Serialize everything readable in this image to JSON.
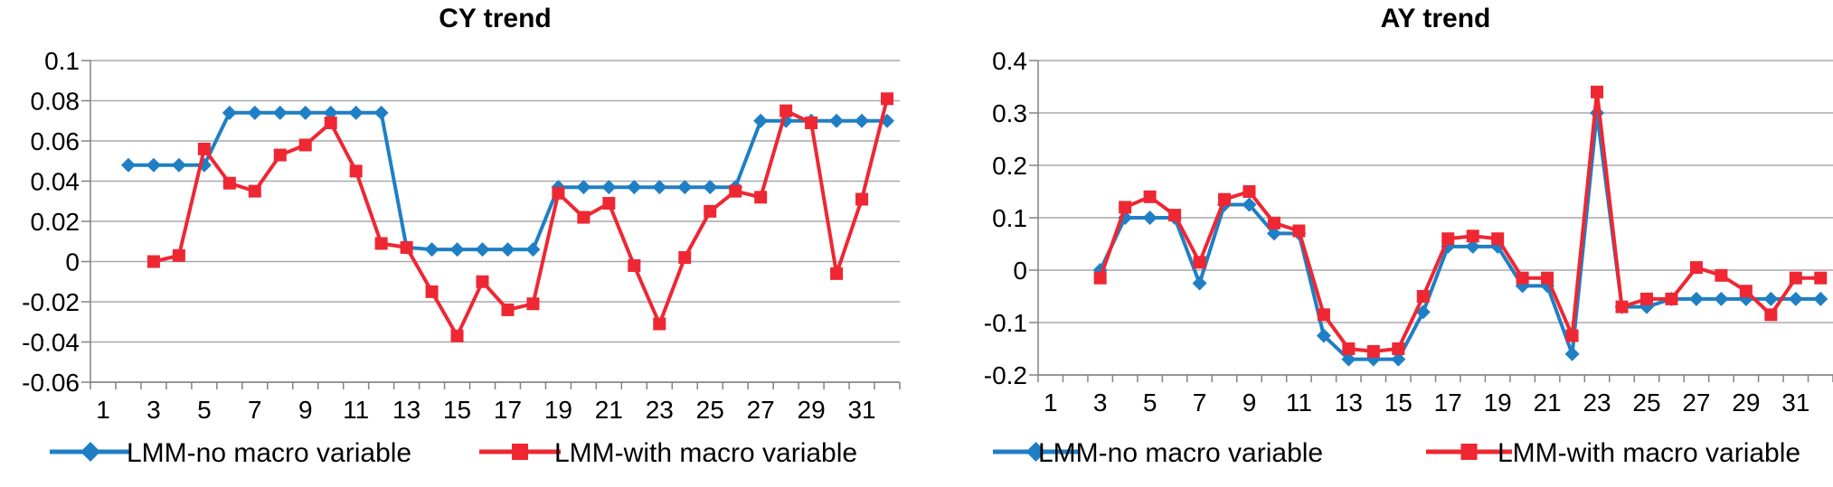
{
  "chart_data": [
    {
      "type": "line",
      "title": "CY trend",
      "x": [
        1,
        2,
        3,
        4,
        5,
        6,
        7,
        8,
        9,
        10,
        11,
        12,
        13,
        14,
        15,
        16,
        17,
        18,
        19,
        20,
        21,
        22,
        23,
        24,
        25,
        26,
        27,
        28,
        29,
        30,
        31,
        32
      ],
      "x_tick_labels": [
        "1",
        "3",
        "5",
        "7",
        "9",
        "11",
        "13",
        "15",
        "17",
        "19",
        "21",
        "23",
        "25",
        "27",
        "29",
        "31"
      ],
      "ylim": [
        -0.06,
        0.1
      ],
      "y_ticks": [
        -0.06,
        -0.04,
        -0.02,
        0,
        0.02,
        0.04,
        0.06,
        0.08,
        0.1
      ],
      "y_tick_labels": [
        "-0.06",
        "-0.04",
        "-0.02",
        "0",
        "0.02",
        "0.04",
        "0.06",
        "0.08",
        "0.1"
      ],
      "grid": true,
      "legend": "bottom",
      "series": [
        {
          "name": "LMM-no macro variable",
          "color": "#1f7fc4",
          "marker": "diamond",
          "values": [
            null,
            0.048,
            0.048,
            0.048,
            0.048,
            0.074,
            0.074,
            0.074,
            0.074,
            0.074,
            0.074,
            0.074,
            0.007,
            0.006,
            0.006,
            0.006,
            0.006,
            0.006,
            0.037,
            0.037,
            0.037,
            0.037,
            0.037,
            0.037,
            0.037,
            0.037,
            0.07,
            0.07,
            0.07,
            0.07,
            0.07,
            0.07
          ]
        },
        {
          "name": "LMM-with macro variable",
          "color": "#ee2733",
          "marker": "square",
          "values": [
            null,
            null,
            0.0,
            0.003,
            0.056,
            0.039,
            0.035,
            0.053,
            0.058,
            0.069,
            0.045,
            0.009,
            0.007,
            -0.015,
            -0.037,
            -0.01,
            -0.024,
            -0.021,
            0.034,
            0.022,
            0.029,
            -0.002,
            -0.031,
            0.002,
            0.025,
            0.035,
            0.032,
            0.075,
            0.069,
            -0.006,
            0.031,
            0.081
          ]
        }
      ]
    },
    {
      "type": "line",
      "title": "AY trend",
      "x": [
        1,
        2,
        3,
        4,
        5,
        6,
        7,
        8,
        9,
        10,
        11,
        12,
        13,
        14,
        15,
        16,
        17,
        18,
        19,
        20,
        21,
        22,
        23,
        24,
        25,
        26,
        27,
        28,
        29,
        30,
        31,
        32
      ],
      "x_tick_labels": [
        "1",
        "3",
        "5",
        "7",
        "9",
        "11",
        "13",
        "15",
        "17",
        "19",
        "21",
        "23",
        "25",
        "27",
        "29",
        "31"
      ],
      "ylim": [
        -0.2,
        0.4
      ],
      "y_ticks": [
        -0.2,
        -0.1,
        0,
        0.1,
        0.2,
        0.3,
        0.4
      ],
      "y_tick_labels": [
        "-0.2",
        "-0.1",
        "0",
        "0.1",
        "0.2",
        "0.3",
        "0.4"
      ],
      "grid": true,
      "legend": "bottom",
      "series": [
        {
          "name": "LMM-no macro variable",
          "color": "#1f7fc4",
          "marker": "diamond",
          "values": [
            null,
            null,
            0.0,
            0.1,
            0.1,
            0.1,
            -0.025,
            0.125,
            0.125,
            0.07,
            0.07,
            -0.125,
            -0.17,
            -0.17,
            -0.17,
            -0.08,
            0.045,
            0.045,
            0.045,
            -0.03,
            -0.03,
            -0.16,
            0.3,
            -0.07,
            -0.07,
            -0.055,
            -0.055,
            -0.055,
            -0.055,
            -0.055,
            -0.055,
            -0.055
          ]
        },
        {
          "name": "LMM-with macro variable",
          "color": "#ee2733",
          "marker": "square",
          "values": [
            null,
            null,
            -0.015,
            0.12,
            0.14,
            0.105,
            0.015,
            0.135,
            0.15,
            0.09,
            0.075,
            -0.085,
            -0.15,
            -0.155,
            -0.15,
            -0.05,
            0.06,
            0.065,
            0.06,
            -0.015,
            -0.015,
            -0.125,
            0.34,
            -0.07,
            -0.055,
            -0.055,
            0.005,
            -0.01,
            -0.04,
            -0.085,
            -0.015,
            -0.015
          ]
        }
      ]
    }
  ]
}
